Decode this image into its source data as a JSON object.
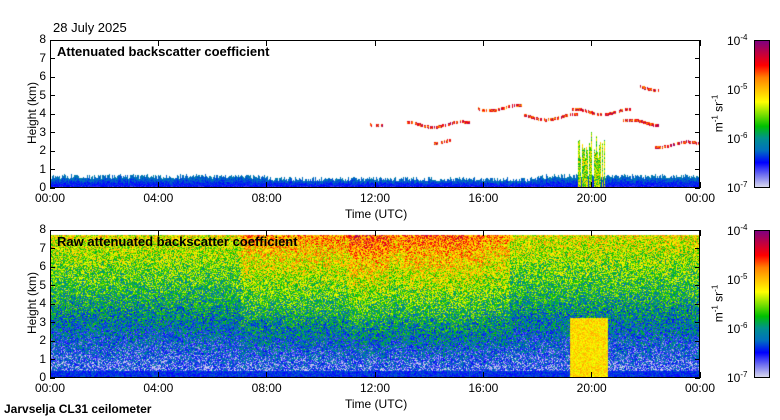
{
  "date": "28 July 2025",
  "footer": "Jarvselja CL31 ceilometer",
  "colorbar": {
    "ticks": [
      {
        "base": "10",
        "exp": "-4"
      },
      {
        "base": "10",
        "exp": "-5"
      },
      {
        "base": "10",
        "exp": "-6"
      },
      {
        "base": "10",
        "exp": "-7"
      }
    ],
    "units_base1": "m",
    "units_exp1": "-1",
    "units_base2": " sr",
    "units_exp2": "-1",
    "colors": [
      "#d8d8ee",
      "#7070f0",
      "#0000ff",
      "#0070c0",
      "#009090",
      "#00c000",
      "#80e000",
      "#ffff00",
      "#ffc000",
      "#ff8000",
      "#ff0000",
      "#c00040",
      "#800080"
    ]
  },
  "chart_data": [
    {
      "type": "heatmap",
      "title": "Attenuated backscatter coefficient",
      "xlabel": "Time (UTC)",
      "ylabel": "Height (km)",
      "xticks": [
        "00:00",
        "04:00",
        "08:00",
        "12:00",
        "16:00",
        "20:00",
        "00:00"
      ],
      "yticks": [
        "0",
        "1",
        "2",
        "3",
        "4",
        "5",
        "6",
        "7",
        "8"
      ],
      "xlim_hours": [
        0,
        24
      ],
      "ylim_km": [
        0,
        8
      ],
      "clim_log10": [
        -7,
        -4
      ],
      "boundary_layer_top_km": 0.45,
      "cloud_layers": [
        {
          "t0": 11.8,
          "t1": 12.3,
          "h": 3.6
        },
        {
          "t0": 13.2,
          "t1": 15.5,
          "h": 3.5
        },
        {
          "t0": 14.2,
          "t1": 14.8,
          "h": 2.6
        },
        {
          "t0": 15.8,
          "t1": 17.5,
          "h": 4.4
        },
        {
          "t0": 17.5,
          "t1": 19.5,
          "h": 3.9
        },
        {
          "t0": 19.3,
          "t1": 21.5,
          "h": 4.2
        },
        {
          "t0": 21.2,
          "t1": 22.5,
          "h": 3.6
        },
        {
          "t0": 22.3,
          "t1": 24,
          "h": 2.4
        },
        {
          "t0": 21.8,
          "t1": 22.5,
          "h": 5.5
        }
      ],
      "precip_hours": [
        19.5,
        20.5
      ]
    },
    {
      "type": "heatmap",
      "title": "Raw attenuated backscatter coefficient",
      "xlabel": "Time (UTC)",
      "ylabel": "Height (km)",
      "xticks": [
        "00:00",
        "04:00",
        "08:00",
        "12:00",
        "16:00",
        "20:00",
        "00:00"
      ],
      "yticks": [
        "0",
        "1",
        "2",
        "3",
        "4",
        "5",
        "6",
        "7",
        "8"
      ],
      "xlim_hours": [
        0,
        24
      ],
      "ylim_km": [
        0,
        8
      ],
      "clim_log10": [
        -7,
        -4
      ]
    }
  ]
}
